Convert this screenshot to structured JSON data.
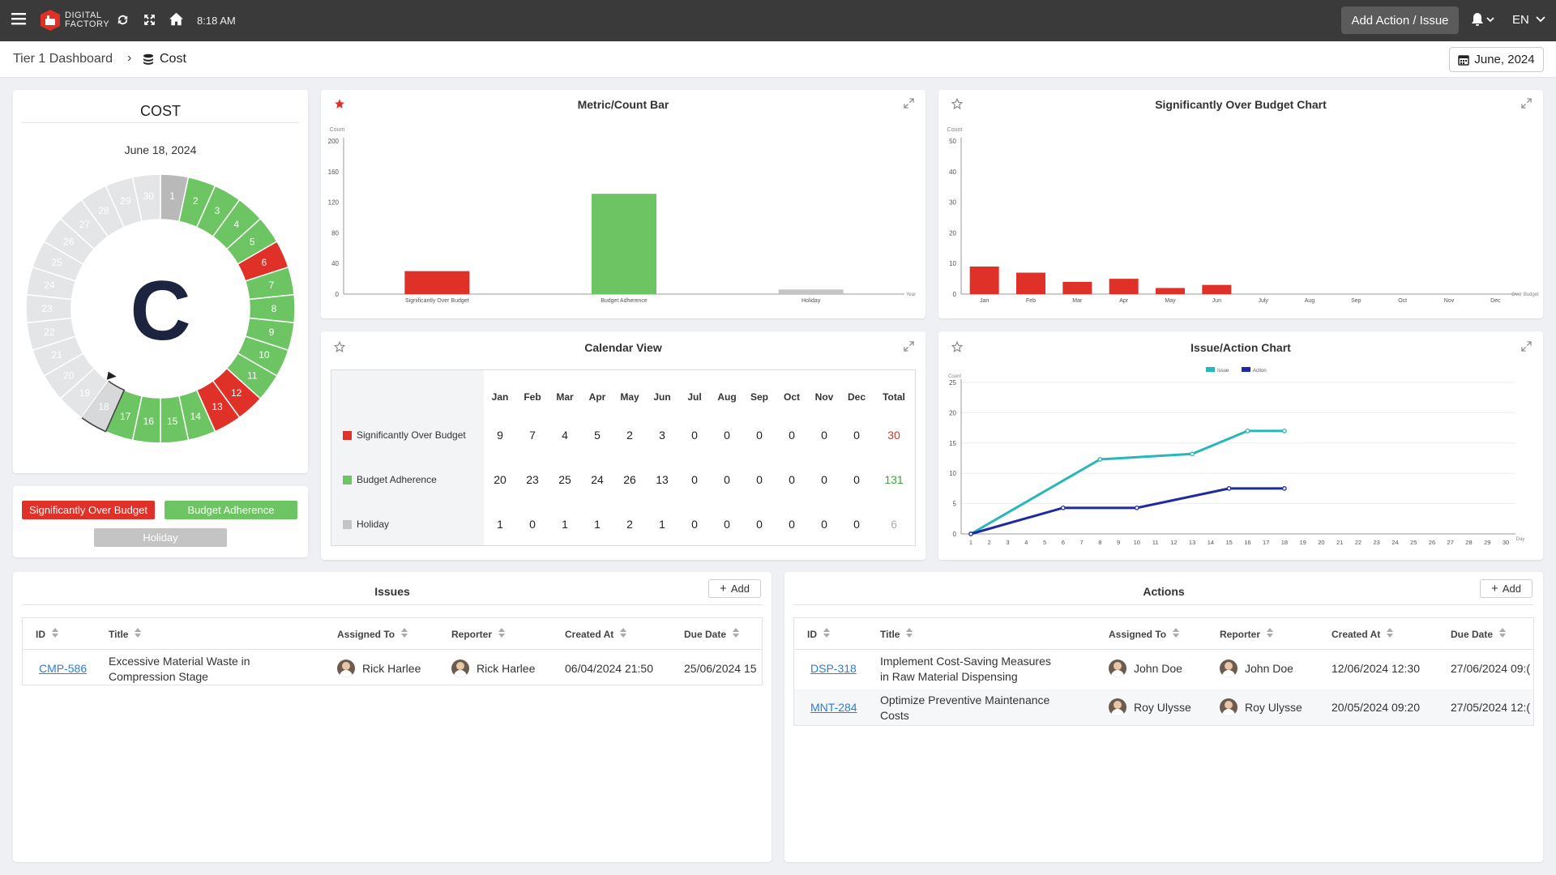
{
  "header": {
    "logo_text": "DIGITAL\nFACTORY",
    "time": "8:18 AM",
    "add_action_label": "Add Action / Issue",
    "language": "EN"
  },
  "breadcrumb": {
    "root": "Tier 1 Dashboard",
    "current": "Cost",
    "date_selector": "June, 2024"
  },
  "cost_panel": {
    "title": "COST",
    "date": "June 18, 2024",
    "letter": "C",
    "days": [
      {
        "day": 1,
        "status": "today"
      },
      {
        "day": 2,
        "status": "green"
      },
      {
        "day": 3,
        "status": "green"
      },
      {
        "day": 4,
        "status": "green"
      },
      {
        "day": 5,
        "status": "green"
      },
      {
        "day": 6,
        "status": "red"
      },
      {
        "day": 7,
        "status": "green"
      },
      {
        "day": 8,
        "status": "green"
      },
      {
        "day": 9,
        "status": "green"
      },
      {
        "day": 10,
        "status": "green"
      },
      {
        "day": 11,
        "status": "green"
      },
      {
        "day": 12,
        "status": "red"
      },
      {
        "day": 13,
        "status": "red"
      },
      {
        "day": 14,
        "status": "green"
      },
      {
        "day": 15,
        "status": "green"
      },
      {
        "day": 16,
        "status": "green"
      },
      {
        "day": 17,
        "status": "green"
      },
      {
        "day": 18,
        "status": "selected"
      },
      {
        "day": 19,
        "status": "future"
      },
      {
        "day": 20,
        "status": "future"
      },
      {
        "day": 21,
        "status": "future"
      },
      {
        "day": 22,
        "status": "future"
      },
      {
        "day": 23,
        "status": "future"
      },
      {
        "day": 24,
        "status": "future"
      },
      {
        "day": 25,
        "status": "future"
      },
      {
        "day": 26,
        "status": "future"
      },
      {
        "day": 27,
        "status": "future"
      },
      {
        "day": 28,
        "status": "future"
      },
      {
        "day": 29,
        "status": "future"
      },
      {
        "day": 30,
        "status": "future"
      }
    ],
    "legend": {
      "over": "Significantly Over Budget",
      "adherence": "Budget Adherence",
      "holiday": "Holiday"
    }
  },
  "colors": {
    "red": "#e03128",
    "green": "#6cc562",
    "gray": "#c4c4c4",
    "future": "#e4e5e7",
    "teal": "#29b6b9",
    "navy": "#1f2a9e",
    "link": "#2a7de1"
  },
  "metric_bar": {
    "title": "Metric/Count Bar",
    "chart_data": {
      "type": "bar",
      "categories": [
        "Significantly Over Budget",
        "Budget Adherence",
        "Holiday"
      ],
      "values": [
        30,
        131,
        6
      ],
      "ylabel": "Count",
      "xlabel": "Year",
      "ylim": [
        0,
        200
      ],
      "yticks": [
        0,
        40,
        80,
        120,
        160,
        200
      ]
    }
  },
  "over_budget_chart": {
    "title": "Significantly Over Budget Chart",
    "chart_data": {
      "type": "bar",
      "categories": [
        "Jan",
        "Feb",
        "Mar",
        "Apr",
        "May",
        "Jun",
        "July",
        "Aug",
        "Sep",
        "Oct",
        "Nov",
        "Dec"
      ],
      "values": [
        9,
        7,
        4,
        5,
        2,
        3,
        0,
        0,
        0,
        0,
        0,
        0
      ],
      "ylabel": "Count",
      "xlabel": "Over Budget",
      "ylim": [
        0,
        50
      ],
      "yticks": [
        0,
        10,
        20,
        30,
        40,
        50
      ]
    }
  },
  "calendar_view": {
    "title": "Calendar View",
    "months": [
      "Jan",
      "Feb",
      "Mar",
      "Apr",
      "May",
      "Jun",
      "Jul",
      "Aug",
      "Sep",
      "Oct",
      "Nov",
      "Dec"
    ],
    "total_label": "Total",
    "rows": [
      {
        "label": "Significantly Over Budget",
        "values": [
          "9",
          "7",
          "4",
          "5",
          "2",
          "3",
          "0",
          "0",
          "0",
          "0",
          "0",
          "0"
        ],
        "total": "30"
      },
      {
        "label": "Budget Adherence",
        "values": [
          "20",
          "23",
          "25",
          "24",
          "26",
          "13",
          "0",
          "0",
          "0",
          "0",
          "0",
          "0"
        ],
        "total": "131"
      },
      {
        "label": "Holiday",
        "values": [
          "1",
          "0",
          "1",
          "1",
          "2",
          "1",
          "0",
          "0",
          "0",
          "0",
          "0",
          "0"
        ],
        "total": "6"
      }
    ]
  },
  "issue_action_chart": {
    "title": "Issue/Action Chart",
    "chart_data": {
      "type": "line",
      "x": [
        1,
        2,
        3,
        4,
        5,
        6,
        7,
        8,
        9,
        10,
        11,
        12,
        13,
        14,
        15,
        16,
        17,
        18,
        19,
        20,
        21,
        22,
        23,
        24,
        25,
        26,
        27,
        28,
        29,
        30
      ],
      "series": [
        {
          "name": "Issue",
          "points": [
            [
              1,
              0
            ],
            [
              8,
              12.3
            ],
            [
              13,
              13.2
            ],
            [
              16,
              17
            ],
            [
              18,
              17
            ]
          ]
        },
        {
          "name": "Action",
          "points": [
            [
              1,
              0
            ],
            [
              6,
              4.3
            ],
            [
              10,
              4.3
            ],
            [
              15,
              7.5
            ],
            [
              18,
              7.5
            ]
          ]
        }
      ],
      "ylabel": "Count",
      "xlabel": "Day",
      "ylim": [
        0,
        25
      ],
      "yticks": [
        0,
        5,
        10,
        15,
        20,
        25
      ]
    }
  },
  "issues": {
    "title": "Issues",
    "add_label": "Add",
    "columns": [
      "ID",
      "Title",
      "Assigned To",
      "Reporter",
      "Created At",
      "Due Date"
    ],
    "rows": [
      {
        "id": "CMP-586",
        "title": "Excessive Material Waste in Compression Stage",
        "assigned": "Rick Harlee",
        "reporter": "Rick Harlee",
        "created": "06/04/2024 21:50",
        "due": "25/06/2024 15"
      }
    ]
  },
  "actions": {
    "title": "Actions",
    "add_label": "Add",
    "columns": [
      "ID",
      "Title",
      "Assigned To",
      "Reporter",
      "Created At",
      "Due Date"
    ],
    "rows": [
      {
        "id": "DSP-318",
        "title": "Implement Cost-Saving Measures in Raw Material Dispensing",
        "assigned": "John Doe",
        "reporter": "John Doe",
        "created": "12/06/2024 12:30",
        "due": "27/06/2024 09:("
      },
      {
        "id": "MNT-284",
        "title": "Optimize Preventive Maintenance Costs",
        "assigned": "Roy Ulysse",
        "reporter": "Roy Ulysse",
        "created": "20/05/2024 09:20",
        "due": "27/05/2024 12:("
      }
    ]
  }
}
